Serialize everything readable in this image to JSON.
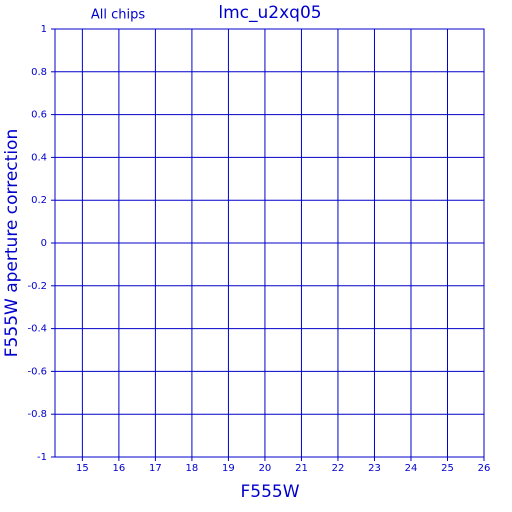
{
  "chart_data": {
    "type": "scatter",
    "title": "lmc_u2xq05",
    "annotation": "All chips",
    "xlabel": "F555W",
    "ylabel": "F555W aperture correction",
    "xlim": [
      14.25,
      26
    ],
    "xticks": [
      15,
      16,
      17,
      18,
      19,
      20,
      21,
      22,
      23,
      24,
      25,
      26
    ],
    "ylim": [
      -1,
      1
    ],
    "yticks": [
      -1,
      -0.8,
      -0.6,
      -0.4,
      -0.2,
      0,
      0.2,
      0.4,
      0.6,
      0.8,
      1
    ],
    "grid": true,
    "color": "#0000cc"
  }
}
